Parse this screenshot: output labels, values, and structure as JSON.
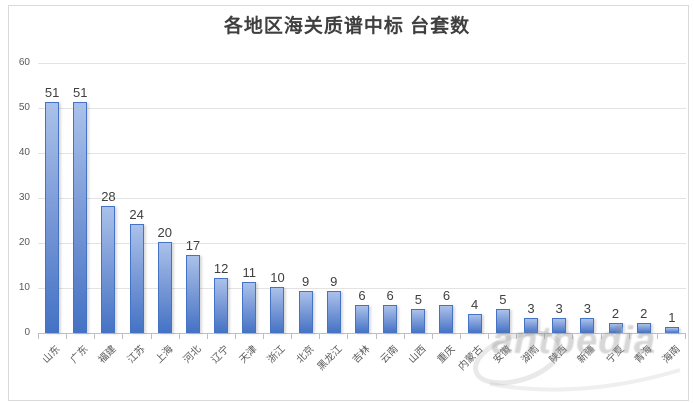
{
  "title": "各地区海关质谱中标 台套数",
  "watermark": {
    "text": "antpedia"
  },
  "colors": {
    "bar_top": "#AAC1EA",
    "bar_bottom": "#4472C4",
    "bar_border": "#4472C4",
    "gridline": "#E3E3E3",
    "axis_line": "#BFBFBF",
    "axis_label": "#595959",
    "value_label": "#404040",
    "title_text": "#3F3F3F"
  },
  "chart_data": {
    "type": "bar",
    "title": "各地区海关质谱中标 台套数",
    "categories": [
      "山东",
      "广东",
      "福建",
      "江苏",
      "上海",
      "河北",
      "辽宁",
      "天津",
      "浙江",
      "北京",
      "黑龙江",
      "吉林",
      "云南",
      "山西",
      "重庆",
      "内蒙古",
      "安徽",
      "湖南",
      "陕西",
      "新疆",
      "宁夏",
      "青海",
      "海南"
    ],
    "values": [
      51,
      51,
      28,
      24,
      20,
      17,
      12,
      11,
      10,
      9,
      9,
      6,
      6,
      5,
      6,
      4,
      5,
      3,
      3,
      3,
      2,
      2,
      1
    ],
    "xlabel": "",
    "ylabel": "",
    "ylim": [
      0,
      60
    ],
    "yticks": [
      0,
      10,
      20,
      30,
      40,
      50,
      60
    ],
    "grid": true,
    "legend": false,
    "data_labels": true,
    "x_tick_rotation": -45
  }
}
